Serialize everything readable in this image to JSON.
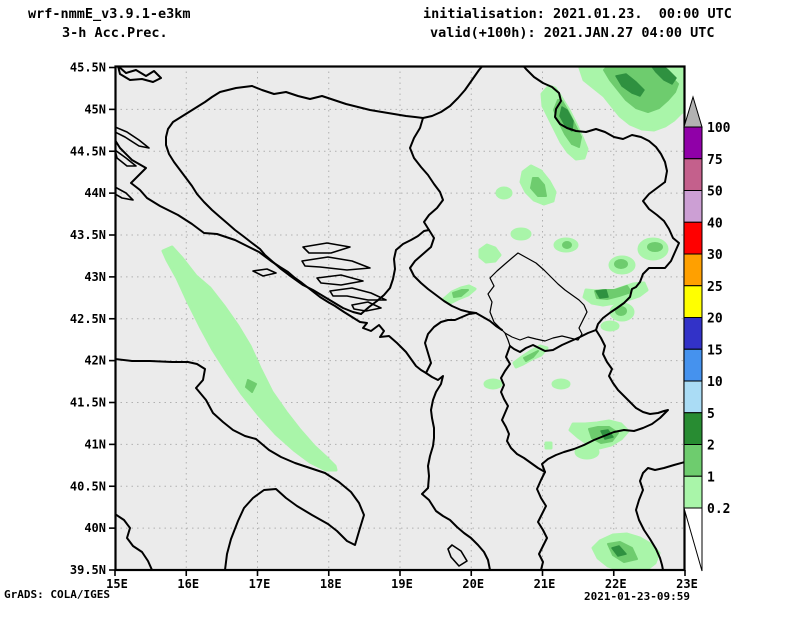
{
  "header": {
    "model": "wrf-nmmE_v3.9.1-e3km",
    "product": "3-h Acc.Prec.",
    "init": "initialisation: 2021.01.23.  00:00 UTC",
    "valid": "valid(+100h): 2021.JAN.27 04:00 UTC"
  },
  "footer": {
    "grads": "GrADS: COLA/IGES",
    "timestamp": "2021-01-23-09:59"
  },
  "axes": {
    "lat_ticks": [
      "45.5N",
      "45N",
      "44.5N",
      "44N",
      "43.5N",
      "43N",
      "42.5N",
      "42N",
      "41.5N",
      "41N",
      "40.5N",
      "40N",
      "39.5N"
    ],
    "lon_ticks": [
      "15E",
      "16E",
      "17E",
      "18E",
      "19E",
      "20E",
      "21E",
      "22E",
      "23E"
    ]
  },
  "legend": {
    "boundary_labels": [
      "100",
      "75",
      "50",
      "40",
      "30",
      "25",
      "20",
      "15",
      "10",
      "5",
      "2",
      "1",
      "0.2"
    ],
    "segment_colors_top_to_bottom": [
      "#9000a8",
      "#c4608c",
      "#cc9fd4",
      "#ff0000",
      "#ffa000",
      "#ffff00",
      "#3232c8",
      "#4592ee",
      "#aadcf5",
      "#288c32",
      "#6ecc6e",
      "#a9f5a9"
    ],
    "overflow_top_color": "#b2b2b2",
    "underflow_bottom_color": "#ffffff"
  },
  "map": {
    "land_color": "#ebebeb",
    "grid_color": "#b0b0b0",
    "outline_color": "#000000",
    "precip_colors": {
      "light": "#a9f5a9",
      "medium": "#6ecc6e",
      "dark": "#2f9140"
    }
  },
  "chart_data": {
    "type": "heatmap",
    "title": "wrf-nmmE_v3.9.1-e3km 3-h Acc.Prec.",
    "legend_levels_mm": [
      0.2,
      1,
      2,
      5,
      10,
      15,
      20,
      25,
      30,
      40,
      50,
      75,
      100
    ],
    "lon_range_deg_east": [
      15,
      23
    ],
    "lat_range_deg_north": [
      39.5,
      45.5
    ],
    "visible_precip_bands_mm": [
      [
        0.2,
        1
      ],
      [
        1,
        2
      ],
      [
        2,
        5
      ]
    ],
    "regions_with_precip": [
      "central Adriatic sea band (0.2-1 mm)",
      "east Serbia / Danube area (up to 2-5 mm)",
      "Kosovo-Bulgaria border area",
      "Macedonia-Greece border area"
    ]
  }
}
